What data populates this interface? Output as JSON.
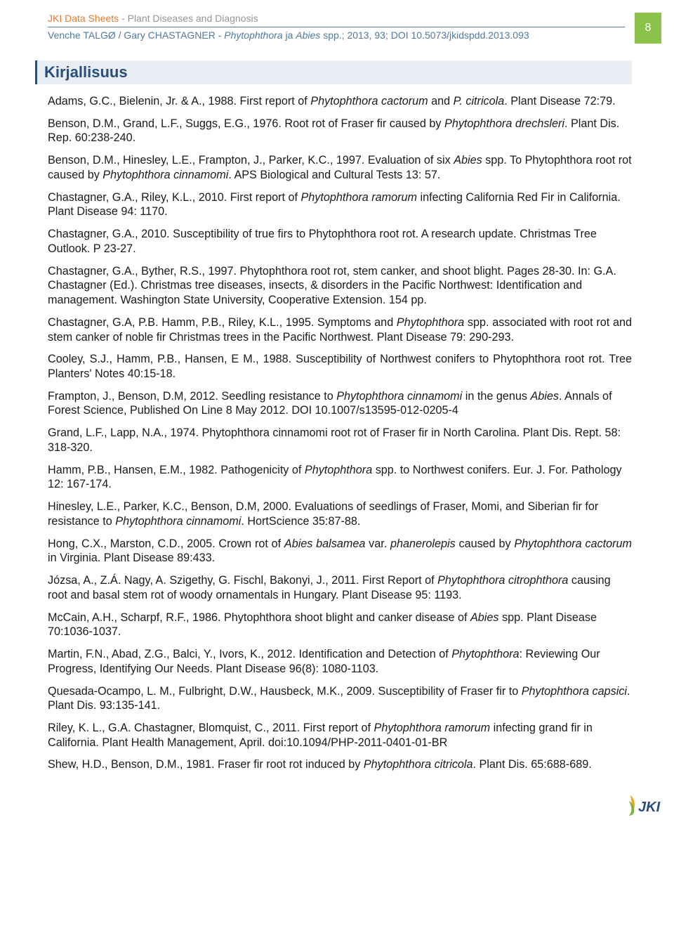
{
  "header": {
    "series_prefix": "JKI Data Sheets",
    "series_suffix": " - Plant Diseases and Diagnosis",
    "authors": "Venche TALGØ / Gary CHASTAGNER - ",
    "title_ital": "Phytophthora",
    "title_mid": " ja ",
    "title_ital2": "Abies",
    "title_rest": " spp.; 2013, 93; DOI 10.5073/jkidspdd.2013.093",
    "page_number": "8"
  },
  "section_title": "Kirjallisuus",
  "refs": [
    {
      "html": "Adams, G.C., Bielenin, Jr. & A., 1988. First report of <em>Phytophthora cactorum</em> and <em>P. citricola</em>. Plant Disease 72:79."
    },
    {
      "html": "Benson, D.M., Grand, L.F., Suggs, E.G., 1976. Root rot of Fraser fir caused by <em>Phytophthora drechsleri</em>. Plant Dis. Rep. 60:238-240."
    },
    {
      "html": "Benson, D.M., Hinesley, L.E., Frampton, J., Parker, K.C., 1997. Evaluation of six <em>Abies</em> spp. To Phytophthora root rot caused by <em>Phytophthora cinnamomi</em>. APS Biological and Cultural Tests 13: 57."
    },
    {
      "html": "Chastagner, G.A., Riley, K.L., 2010. First report of <em>Phytophthora ramorum</em> infecting California Red Fir in California. Plant Disease 94: 1170."
    },
    {
      "html": "Chastagner, G.A., 2010. Susceptibility of true firs to Phytophthora root rot. A research update. Christmas Tree Outlook. P 23-27."
    },
    {
      "html": "Chastagner, G.A., Byther, R.S., 1997. Phytophthora root rot, stem canker, and shoot blight. Pages 28-30. In: G.A. Chastagner (Ed.). Christmas tree diseases, insects, & disorders in the Pacific Northwest: Identification and management. Washington State University, Cooperative Extension. 154 pp."
    },
    {
      "html": "Chastagner, G.A, P.B. Hamm, P.B., Riley, K.L., 1995.  Symptoms and <em>Phytophthora</em> spp. associated with root rot and stem canker of noble fir Christmas trees in the Pacific Northwest. Plant Disease 79: 290-293.",
      "justify": true
    },
    {
      "html": "Cooley, S.J., Hamm, P.B., Hansen, E M., 1988. Susceptibility of Northwest conifers to Phytophthora root rot. Tree Planters' Notes 40:15-18.",
      "justify": true
    },
    {
      "html": "Frampton, J., Benson, D.M, 2012. Seedling resistance to <em>Phytophthora cinnamomi</em> in the genus <em>Abies</em>. Annals of Forest Science, Published On Line 8 May 2012. DOI 10.1007/s13595-012-0205-4"
    },
    {
      "html": "Grand, L.F., Lapp, N.A., 1974. Phytophthora cinnamomi root rot of Fraser fir in North Carolina. Plant Dis. Rept. 58: 318-320."
    },
    {
      "html": "Hamm, P.B., Hansen, E.M., 1982. Pathogenicity of <em>Phytophthora</em> spp. to Northwest conifers. Eur. J. For. Pathology 12: 167-174."
    },
    {
      "html": "Hinesley, L.E., Parker, K.C., Benson, D.M, 2000. Evaluations of seedlings of Fraser, Momi, and Siberian fir for resistance to <em>Phytophthora cinnamomi</em>. HortScience 35:87-88."
    },
    {
      "html": "Hong, C.X., Marston, C.D., 2005. Crown rot of <em>Abies balsamea</em> var. <em>phanerolepis</em> caused by <em>Phytophthora cactorum</em> in Virginia. Plant Disease 89:433.",
      "justify": true
    },
    {
      "html": "Józsa, A., Z.Á. Nagy, A. Szigethy, G. Fischl, Bakonyi, J., 2011. First Report of <em>Phytophthora citrophthora</em> causing root and basal stem rot of woody ornamentals in Hungary. Plant Disease 95: 1193."
    },
    {
      "html": "McCain, A.H., Scharpf, R.F., 1986. Phytophthora shoot blight and canker disease of <em>Abies</em> spp. Plant Disease 70:1036-1037."
    },
    {
      "html": "Martin, F.N., Abad, Z.G., Balci, Y., Ivors, K., 2012. Identification and Detection of <em>Phytophthora</em>: Reviewing Our Progress, Identifying Our Needs. Plant Disease 96(8): 1080-1103."
    },
    {
      "html": "Quesada-Ocampo, L. M., Fulbright, D.W., Hausbeck, M.K., 2009. Susceptibility of Fraser fir to <em>Phytophthora capsici</em>. Plant Dis. 93:135-141."
    },
    {
      "html": "Riley, K. L., G.A. Chastagner, Blomquist, C., 2011. First report of <em>Phytophthora ramorum</em> infecting grand fir in California. Plant Health Management, April. doi:10.1094/PHP-2011-0401-01-BR"
    },
    {
      "html": "Shew, H.D., Benson, D.M., 1981. Fraser fir root rot induced by <em>Phytophthora citricola</em>. Plant Dis. 65:688-689."
    }
  ],
  "logo_text": "JKI",
  "colors": {
    "orange": "#e57928",
    "grey": "#959595",
    "blue": "#4f78a0",
    "section_bg": "#e8eef4",
    "section_text": "#2a4d7a",
    "green": "#8bc34a"
  }
}
